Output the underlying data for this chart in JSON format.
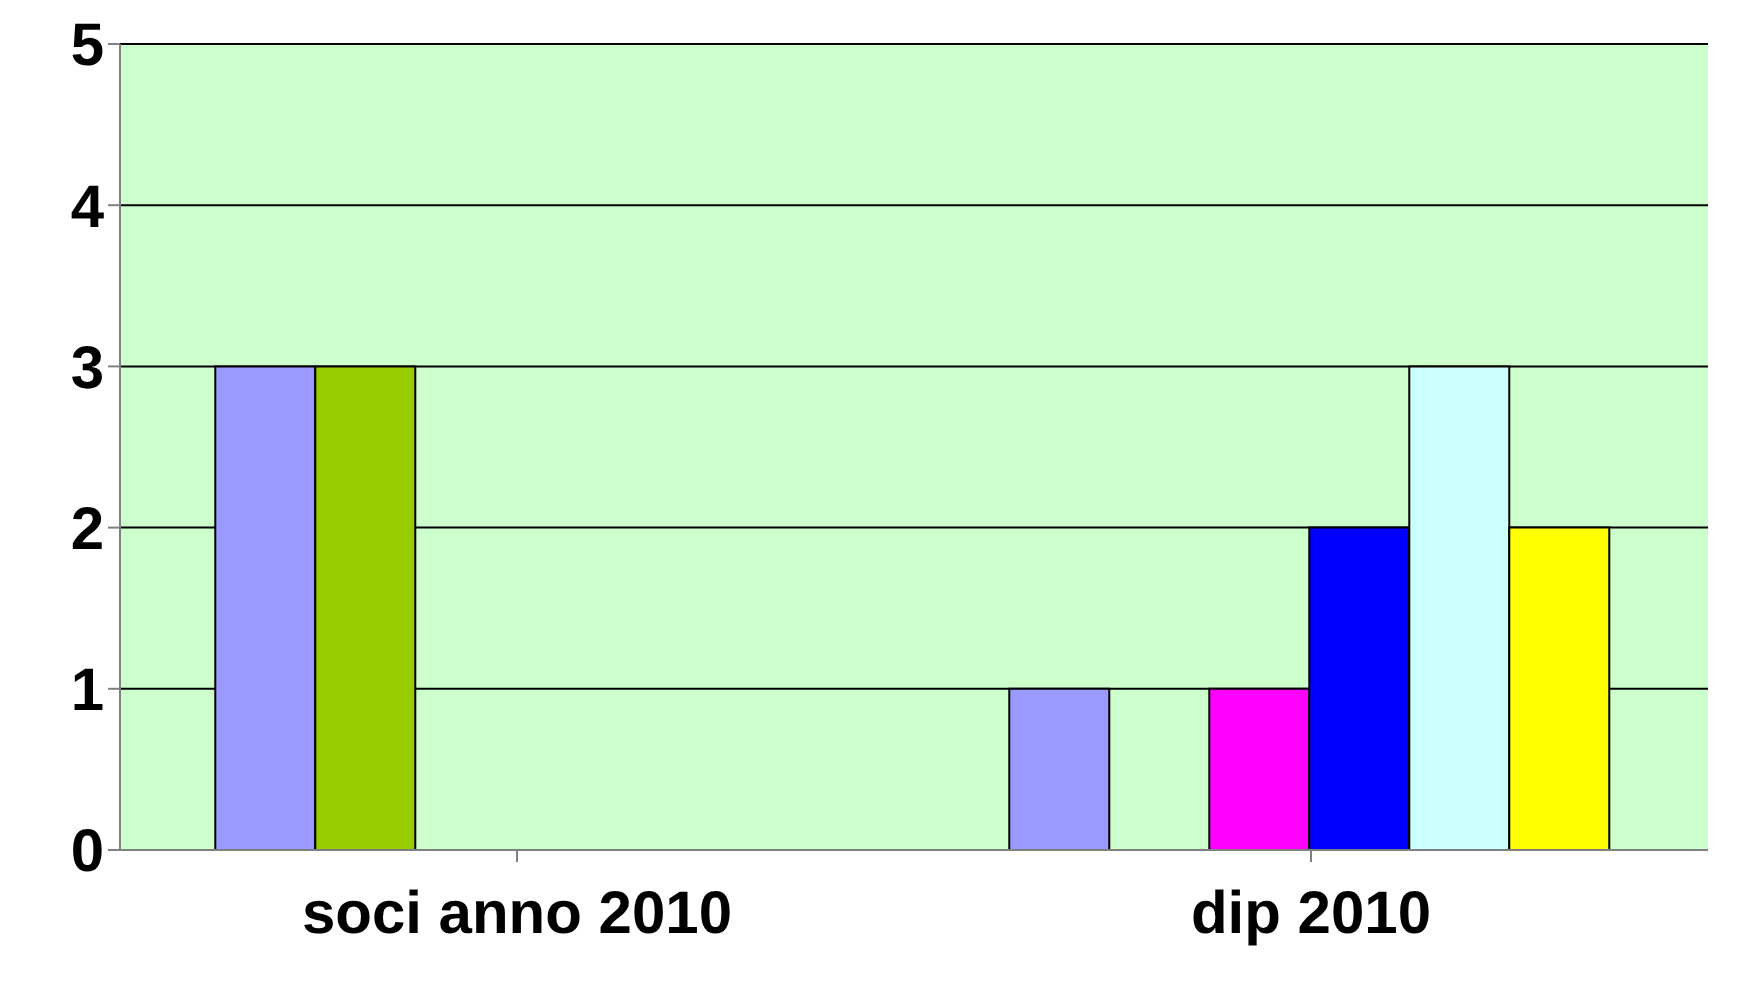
{
  "chart_data": {
    "type": "bar",
    "categories": [
      "soci anno 2010",
      "dip 2010"
    ],
    "series": [
      {
        "color": "#9999ff",
        "values": [
          3,
          1
        ]
      },
      {
        "color": "#99cc00",
        "values": [
          3,
          null
        ]
      },
      {
        "color": "#ff00ff",
        "values": [
          null,
          1
        ]
      },
      {
        "color": "#0000ff",
        "values": [
          null,
          2
        ]
      },
      {
        "color": "#ccffff",
        "values": [
          null,
          3
        ]
      },
      {
        "color": "#ffff00",
        "values": [
          null,
          2
        ]
      }
    ],
    "ylim": [
      0,
      5
    ],
    "yticks": [
      0,
      1,
      2,
      3,
      4,
      5
    ],
    "grid": "y",
    "legend": false
  }
}
